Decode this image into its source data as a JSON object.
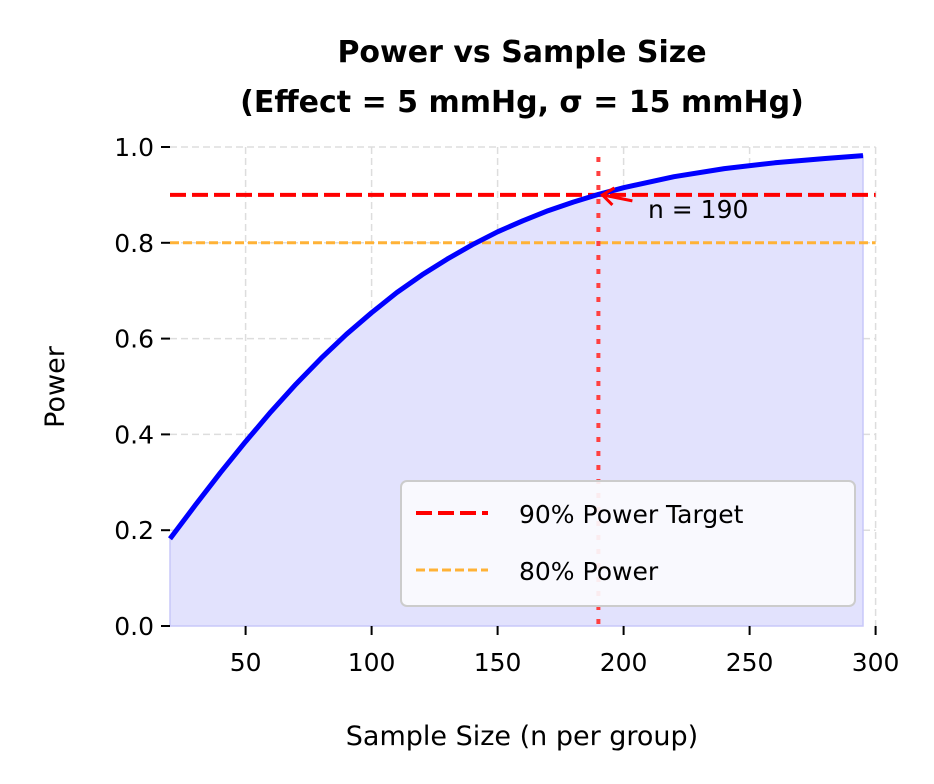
{
  "chart_data": {
    "type": "line",
    "title_lines": [
      "Power vs Sample Size",
      "(Effect = 5 mmHg, σ = 15 mmHg)"
    ],
    "xlabel": "Sample Size (n per group)",
    "ylabel": "Power",
    "xlim": [
      20,
      300
    ],
    "ylim": [
      0,
      1.0
    ],
    "xticks": [
      50,
      100,
      150,
      200,
      250,
      300
    ],
    "yticks": [
      0.0,
      0.2,
      0.4,
      0.6,
      0.8,
      1.0
    ],
    "ytick_labels": [
      "0.0",
      "0.2",
      "0.4",
      "0.6",
      "0.8",
      "1.0"
    ],
    "grid": true,
    "series": [
      {
        "color": "#0000ff",
        "fill_color": "#e2e2fd",
        "x": [
          20,
          30,
          40,
          50,
          60,
          70,
          80,
          90,
          100,
          110,
          120,
          130,
          140,
          150,
          160,
          170,
          180,
          190,
          200,
          220,
          240,
          260,
          280,
          295
        ],
        "y": [
          0.182,
          0.252,
          0.32,
          0.385,
          0.447,
          0.505,
          0.559,
          0.609,
          0.654,
          0.696,
          0.733,
          0.766,
          0.796,
          0.823,
          0.846,
          0.867,
          0.885,
          0.901,
          0.915,
          0.938,
          0.955,
          0.967,
          0.976,
          0.982
        ]
      }
    ],
    "reference_lines": [
      {
        "orientation": "horizontal",
        "y": 0.9,
        "name": "90% Power Target",
        "color": "#ff0000",
        "style": "dashed"
      },
      {
        "orientation": "horizontal",
        "y": 0.8,
        "name": "80% Power",
        "color": "#ffb236",
        "style": "dashed"
      },
      {
        "orientation": "vertical",
        "x": 190,
        "color": "#ff4040",
        "style": "dotted"
      }
    ],
    "annotation": {
      "text": "n = 190",
      "x": 190,
      "y": 0.9,
      "arrow": true
    },
    "legend_position": "lower-right"
  }
}
